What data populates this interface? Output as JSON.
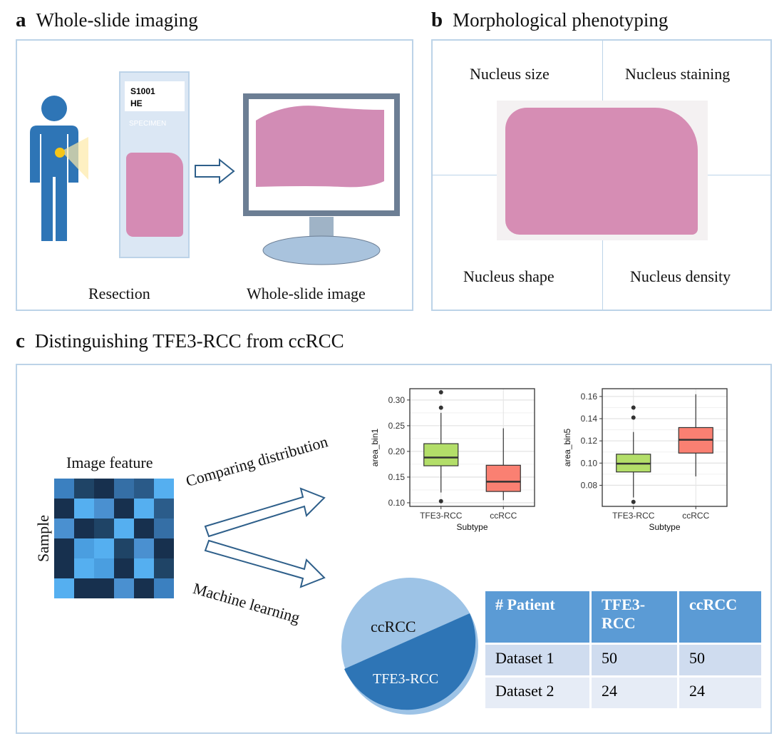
{
  "panel_a": {
    "letter": "a",
    "title": "Whole-slide imaging",
    "slide_label_1": "S1001",
    "slide_label_2": "HE",
    "slide_specimen": "SPECIMEN",
    "caption_left": "Resection",
    "caption_right": "Whole-slide image"
  },
  "panel_b": {
    "letter": "b",
    "title": "Morphological phenotyping",
    "quadrants": [
      "Nucleus size",
      "Nucleus staining",
      "Nucleus shape",
      "Nucleus density"
    ]
  },
  "panel_c": {
    "letter": "c",
    "title": "Distinguishing TFE3-RCC from ccRCC",
    "heatmap_title": "Image feature",
    "heatmap_ylabel": "Sample",
    "arrow_top": "Comparing distribution",
    "arrow_bottom": "Machine learning",
    "heatmap_colors": [
      [
        "#3b80c0",
        "#1f4466",
        "#17304e",
        "#356fa6",
        "#2a5a88",
        "#55aff0"
      ],
      [
        "#17304e",
        "#55aff0",
        "#4a90d0",
        "#17304e",
        "#55aff0",
        "#2b5c8a"
      ],
      [
        "#4a90d0",
        "#17304e",
        "#1f4466",
        "#55aff0",
        "#17304e",
        "#356fa6"
      ],
      [
        "#17304e",
        "#4a9ee0",
        "#55aff0",
        "#1f4466",
        "#4a90d0",
        "#17304e"
      ],
      [
        "#17304e",
        "#55aff0",
        "#4a9ee0",
        "#17304e",
        "#55aff0",
        "#1f4466"
      ],
      [
        "#55aff0",
        "#17304e",
        "#17304e",
        "#4a90d0",
        "#17304e",
        "#3b80c0"
      ]
    ],
    "pie": {
      "slices": [
        {
          "label": "ccRCC",
          "value": 50,
          "color": "#9dc3e6"
        },
        {
          "label": "TFE3-RCC",
          "value": 50,
          "color": "#2e75b6"
        }
      ]
    },
    "table": {
      "headers": [
        "# Patient",
        "TFE3-RCC",
        "ccRCC"
      ],
      "rows": [
        [
          "Dataset 1",
          "50",
          "50"
        ],
        [
          "Dataset 2",
          "24",
          "24"
        ]
      ]
    }
  },
  "chart_data": [
    {
      "type": "boxplot",
      "xlabel": "Subtype",
      "ylabel": "area_bin1",
      "categories": [
        "TFE3-RCC",
        "ccRCC"
      ],
      "yticks": [
        0.1,
        0.15,
        0.2,
        0.25,
        0.3
      ],
      "ylim": [
        0.093,
        0.322
      ],
      "grid": true,
      "boxes": [
        {
          "category": "TFE3-RCC",
          "whisker_low": 0.12,
          "q1": 0.172,
          "median": 0.188,
          "q3": 0.215,
          "whisker_high": 0.275,
          "outliers": [
            0.315,
            0.285,
            0.103
          ],
          "color": "#b3de69"
        },
        {
          "category": "ccRCC",
          "whisker_low": 0.105,
          "q1": 0.122,
          "median": 0.141,
          "q3": 0.173,
          "whisker_high": 0.245,
          "outliers": [],
          "color": "#fa8072"
        }
      ]
    },
    {
      "type": "boxplot",
      "xlabel": "Subtype",
      "ylabel": "area_bin5",
      "categories": [
        "TFE3-RCC",
        "ccRCC"
      ],
      "yticks": [
        0.08,
        0.1,
        0.12,
        0.14,
        0.16
      ],
      "ylim": [
        0.061,
        0.167
      ],
      "grid": true,
      "boxes": [
        {
          "category": "TFE3-RCC",
          "whisker_low": 0.069,
          "q1": 0.092,
          "median": 0.0995,
          "q3": 0.108,
          "whisker_high": 0.128,
          "outliers": [
            0.15,
            0.141,
            0.065
          ],
          "color": "#b3de69"
        },
        {
          "category": "ccRCC",
          "whisker_low": 0.088,
          "q1": 0.109,
          "median": 0.121,
          "q3": 0.132,
          "whisker_high": 0.162,
          "outliers": [],
          "color": "#fa8072"
        }
      ]
    }
  ]
}
